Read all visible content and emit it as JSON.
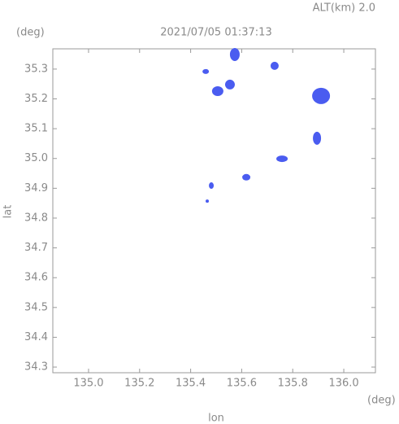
{
  "chart_data": {
    "type": "scatter",
    "title": "2021/07/05 01:37:13",
    "subtitle": "ALT(km) 2.0",
    "xlabel": "lon",
    "ylabel": "lat",
    "x_unit": "(deg)",
    "y_unit": "(deg)",
    "x": [
      135.573,
      135.729,
      135.459,
      135.506,
      135.554,
      135.911,
      135.895,
      135.758,
      135.618,
      135.481,
      135.465
    ],
    "values": [
      35.349,
      35.311,
      35.292,
      35.226,
      35.248,
      35.21,
      35.068,
      34.999,
      34.937,
      34.909,
      34.857
    ],
    "color": "#4a5cf0",
    "xlim": [
      134.86,
      136.124
    ],
    "ylim": [
      34.281,
      35.368
    ],
    "xticks": [
      {
        "value": 135,
        "label": "135.0"
      },
      135.2,
      135.4,
      135.6,
      135.8,
      {
        "value": 136,
        "label": "136.0"
      }
    ],
    "yticks": [
      34.3,
      34.4,
      34.5,
      34.6,
      34.7,
      34.8,
      34.9,
      {
        "value": 35,
        "label": "35.0"
      },
      35.1,
      35.2,
      35.3
    ]
  }
}
